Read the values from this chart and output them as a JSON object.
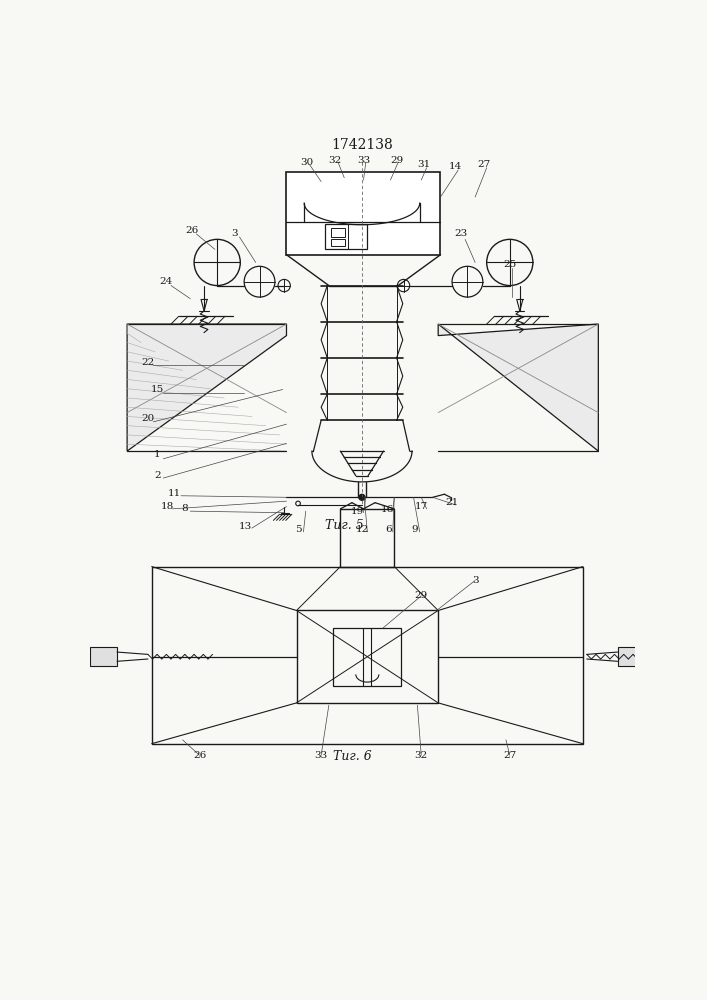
{
  "title": "1742138",
  "fig5_label": "Τиг. 5",
  "fig6_label": "Τиг. 6",
  "bg_color": "#f8f8f5",
  "line_color": "#1a1a1a",
  "fig_width": 7.07,
  "fig_height": 10.0,
  "dpi": 100
}
